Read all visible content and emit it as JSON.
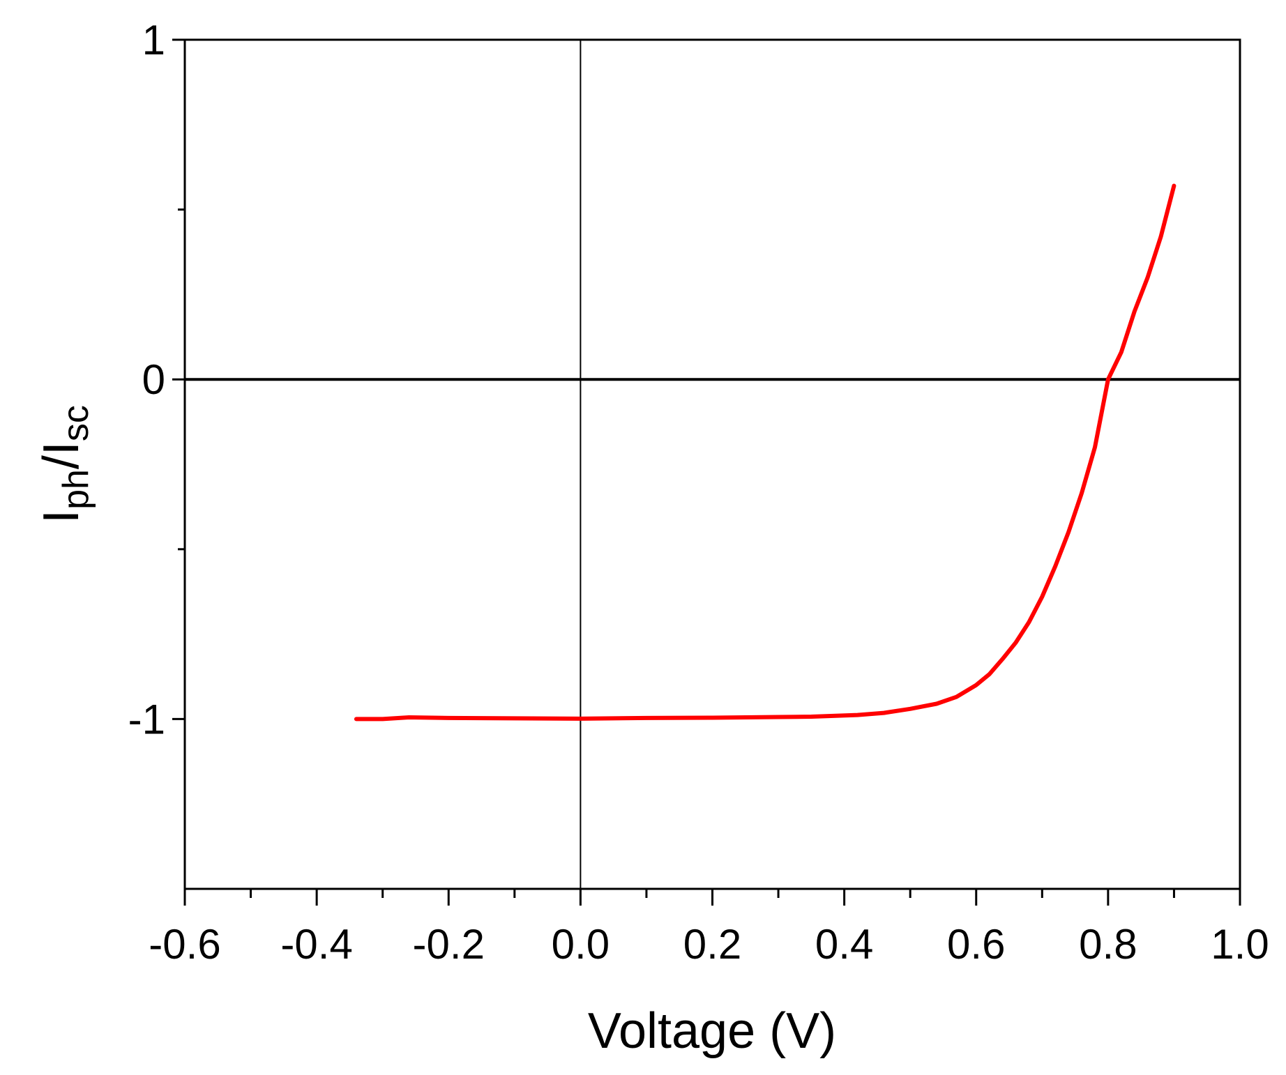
{
  "chart_data": {
    "type": "line",
    "xlabel": "Voltage (V)",
    "ylabel": {
      "main": "I",
      "sub1": "ph",
      "slash": "/I",
      "sub2": "sc"
    },
    "xlim": [
      -0.6,
      1.0
    ],
    "ylim": [
      -1.5,
      1.0
    ],
    "x_ticks": [
      -0.6,
      -0.4,
      -0.2,
      0.0,
      0.2,
      0.4,
      0.6,
      0.8,
      1.0
    ],
    "x_tick_labels": [
      "-0.6",
      "-0.4",
      "-0.2",
      "0.0",
      "0.2",
      "0.4",
      "0.6",
      "0.8",
      "1.0"
    ],
    "x_minor_ticks": [
      -0.5,
      -0.3,
      -0.1,
      0.1,
      0.3,
      0.5,
      0.7,
      0.9
    ],
    "y_ticks": [
      1,
      0,
      -1
    ],
    "y_tick_labels": [
      "1",
      "0",
      "-1"
    ],
    "y_minor_ticks": [
      0.5,
      -0.5
    ],
    "reference_lines": {
      "x_zero": 0.0,
      "y_zero": 0.0
    },
    "grid": false,
    "series": [
      {
        "color": "#ff0000",
        "x": [
          -0.34,
          -0.3,
          -0.26,
          -0.2,
          -0.1,
          0.0,
          0.1,
          0.2,
          0.3,
          0.35,
          0.42,
          0.46,
          0.5,
          0.54,
          0.57,
          0.6,
          0.62,
          0.64,
          0.66,
          0.68,
          0.7,
          0.72,
          0.74,
          0.76,
          0.78,
          0.8,
          0.82,
          0.84,
          0.86,
          0.88,
          0.9
        ],
        "y": [
          -1.0,
          -1.0,
          -0.995,
          -0.997,
          -0.998,
          -0.999,
          -0.997,
          -0.996,
          -0.994,
          -0.993,
          -0.988,
          -0.982,
          -0.97,
          -0.955,
          -0.935,
          -0.9,
          -0.868,
          -0.823,
          -0.775,
          -0.715,
          -0.64,
          -0.55,
          -0.45,
          -0.335,
          -0.2,
          0.0,
          0.08,
          0.2,
          0.3,
          0.42,
          0.57
        ]
      }
    ]
  }
}
